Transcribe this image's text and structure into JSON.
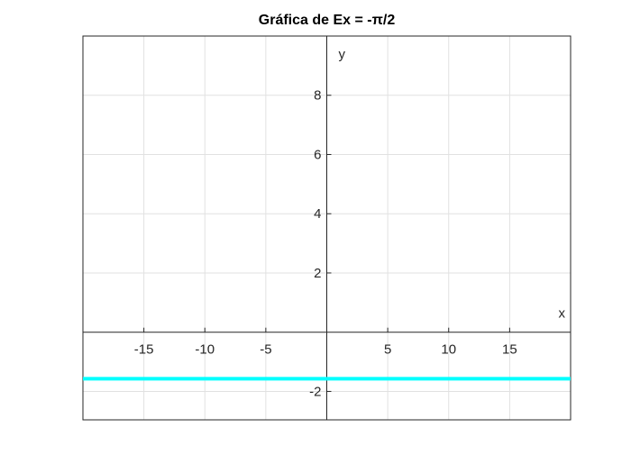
{
  "chart_data": {
    "type": "line",
    "title": "Gráfica de Ex = -π/2",
    "xlabel": "x",
    "ylabel": "y",
    "xlim": [
      -20,
      20
    ],
    "ylim": [
      -2.96,
      10
    ],
    "grid": true,
    "axes_through_origin": true,
    "x_ticks": [
      -15,
      -10,
      -5,
      5,
      10,
      15
    ],
    "x_tick_labels": [
      "-15",
      "-10",
      "-5",
      "5",
      "10",
      "15"
    ],
    "y_ticks": [
      -2,
      2,
      4,
      6,
      8
    ],
    "y_tick_labels": [
      "-2",
      "2",
      "4",
      "6",
      "8"
    ],
    "series": [
      {
        "x": [
          -20,
          20
        ],
        "y": [
          -1.5708,
          -1.5708
        ],
        "color": "#00ffff"
      }
    ]
  }
}
